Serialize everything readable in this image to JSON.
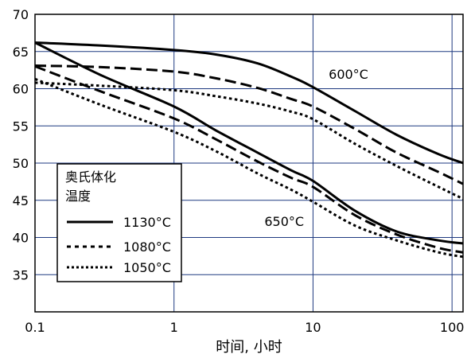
{
  "chart_data": {
    "type": "line",
    "xlabel": "时间, 小时",
    "ylabel": "",
    "x_scale": "log",
    "xlim": [
      0.1,
      120
    ],
    "ylim": [
      30,
      70
    ],
    "grid": true,
    "x_tick_labels": [
      "0.1",
      "1",
      "10",
      "100"
    ],
    "x_ticks": [
      0.1,
      1,
      10,
      100
    ],
    "y_ticks": [
      35,
      40,
      45,
      50,
      55,
      60,
      65,
      70
    ],
    "y_tick_labels": [
      "35",
      "40",
      "45",
      "50",
      "55",
      "60",
      "65",
      "70"
    ],
    "legend": {
      "title_line1": "奥氏体化",
      "title_line2": "温度",
      "position": "lower-left",
      "entries": [
        "1130°C",
        "1080°C",
        "1050°C"
      ]
    },
    "annotations": [
      {
        "text": "600°C",
        "x": 18,
        "y": 62
      },
      {
        "text": "650°C",
        "x": 6.2,
        "y": 42.2
      }
    ],
    "series": [
      {
        "group": "600°C",
        "style": "solid",
        "x": [
          0.1,
          0.3,
          1,
          2,
          4,
          7,
          10,
          20,
          40,
          80,
          120
        ],
        "y": [
          66.2,
          65.8,
          65.2,
          64.6,
          63.4,
          61.6,
          60.2,
          57.0,
          53.8,
          51.2,
          50.0
        ]
      },
      {
        "group": "600°C",
        "style": "dashed",
        "x": [
          0.1,
          0.3,
          1,
          2,
          4,
          7,
          10,
          20,
          40,
          80,
          120
        ],
        "y": [
          63.1,
          62.9,
          62.3,
          61.4,
          60.1,
          58.6,
          57.6,
          54.6,
          51.4,
          48.8,
          47.2
        ]
      },
      {
        "group": "600°C",
        "style": "dotted",
        "x": [
          0.1,
          0.3,
          1,
          2,
          4,
          7,
          10,
          20,
          40,
          80,
          120
        ],
        "y": [
          60.8,
          60.4,
          59.8,
          59.0,
          58.0,
          56.9,
          55.9,
          52.6,
          49.6,
          46.8,
          45.2
        ]
      },
      {
        "group": "650°C",
        "style": "solid",
        "x": [
          0.1,
          0.3,
          1,
          2,
          4,
          7,
          10,
          20,
          40,
          80,
          120
        ],
        "y": [
          66.2,
          61.8,
          57.6,
          54.4,
          51.4,
          49.0,
          47.6,
          43.6,
          40.8,
          39.6,
          39.2
        ]
      },
      {
        "group": "650°C",
        "style": "dashed",
        "x": [
          0.1,
          0.3,
          1,
          2,
          4,
          7,
          10,
          20,
          40,
          80,
          120
        ],
        "y": [
          63.0,
          59.6,
          56.0,
          53.2,
          50.2,
          48.0,
          46.8,
          43.0,
          40.4,
          38.6,
          38.0
        ]
      },
      {
        "group": "650°C",
        "style": "dotted",
        "x": [
          0.1,
          0.3,
          1,
          2,
          4,
          7,
          10,
          20,
          40,
          80,
          120
        ],
        "y": [
          61.3,
          57.8,
          54.2,
          51.6,
          48.6,
          46.4,
          44.8,
          41.6,
          39.6,
          38.0,
          37.4
        ]
      }
    ]
  }
}
